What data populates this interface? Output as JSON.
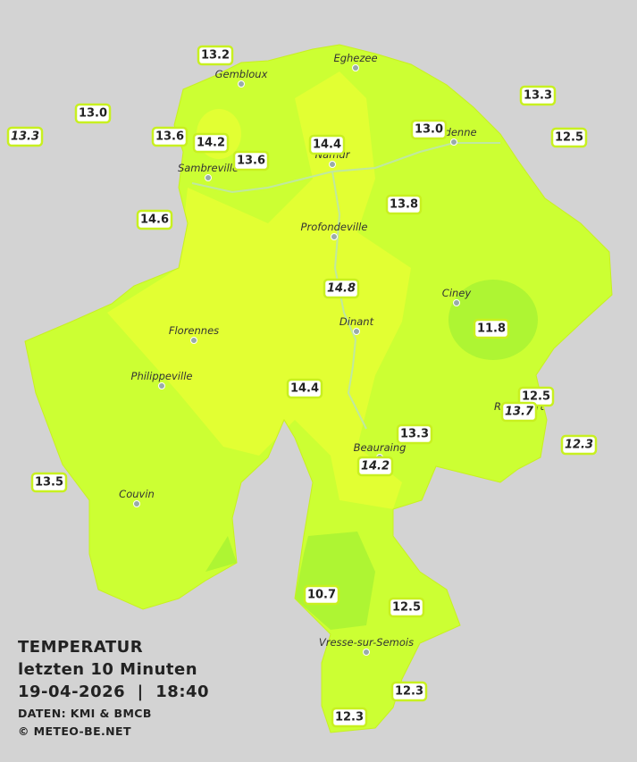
{
  "legend": {
    "title": "TEMPERATUR",
    "subtitle": "letzten 10 Minuten",
    "timestamp": "19-04-2026  |  18:40",
    "source": "DATEN: KMI & BMCB",
    "copyright": "© METEO-BE.NET"
  },
  "cities": [
    "Eghezee",
    "Gembloux",
    "Andenne",
    "Namur",
    "Sambreville",
    "Profondeville",
    "Ciney",
    "Dinant",
    "Florennes",
    "Philippeville",
    "Rochefort",
    "Beauraing",
    "Couvin",
    "Vresse-sur-Semois"
  ],
  "stations": [
    {
      "value": "13.2",
      "italic": false
    },
    {
      "value": "13.0",
      "italic": false
    },
    {
      "value": "13.3",
      "italic": true
    },
    {
      "value": "13.6",
      "italic": false
    },
    {
      "value": "14.2",
      "italic": false
    },
    {
      "value": "14.4",
      "italic": false
    },
    {
      "value": "13.6",
      "italic": false
    },
    {
      "value": "13.0",
      "italic": false
    },
    {
      "value": "13.3",
      "italic": false
    },
    {
      "value": "12.5",
      "italic": false
    },
    {
      "value": "13.8",
      "italic": false
    },
    {
      "value": "14.6",
      "italic": false
    },
    {
      "value": "14.8",
      "italic": true
    },
    {
      "value": "11.8",
      "italic": false
    },
    {
      "value": "14.4",
      "italic": false
    },
    {
      "value": "12.5",
      "italic": false
    },
    {
      "value": "13.7",
      "italic": true
    },
    {
      "value": "12.3",
      "italic": true
    },
    {
      "value": "13.3",
      "italic": false
    },
    {
      "value": "14.2",
      "italic": true
    },
    {
      "value": "13.5",
      "italic": false
    },
    {
      "value": "10.7",
      "italic": false
    },
    {
      "value": "12.5",
      "italic": false
    },
    {
      "value": "12.3",
      "italic": false
    },
    {
      "value": "12.3",
      "italic": false
    }
  ]
}
